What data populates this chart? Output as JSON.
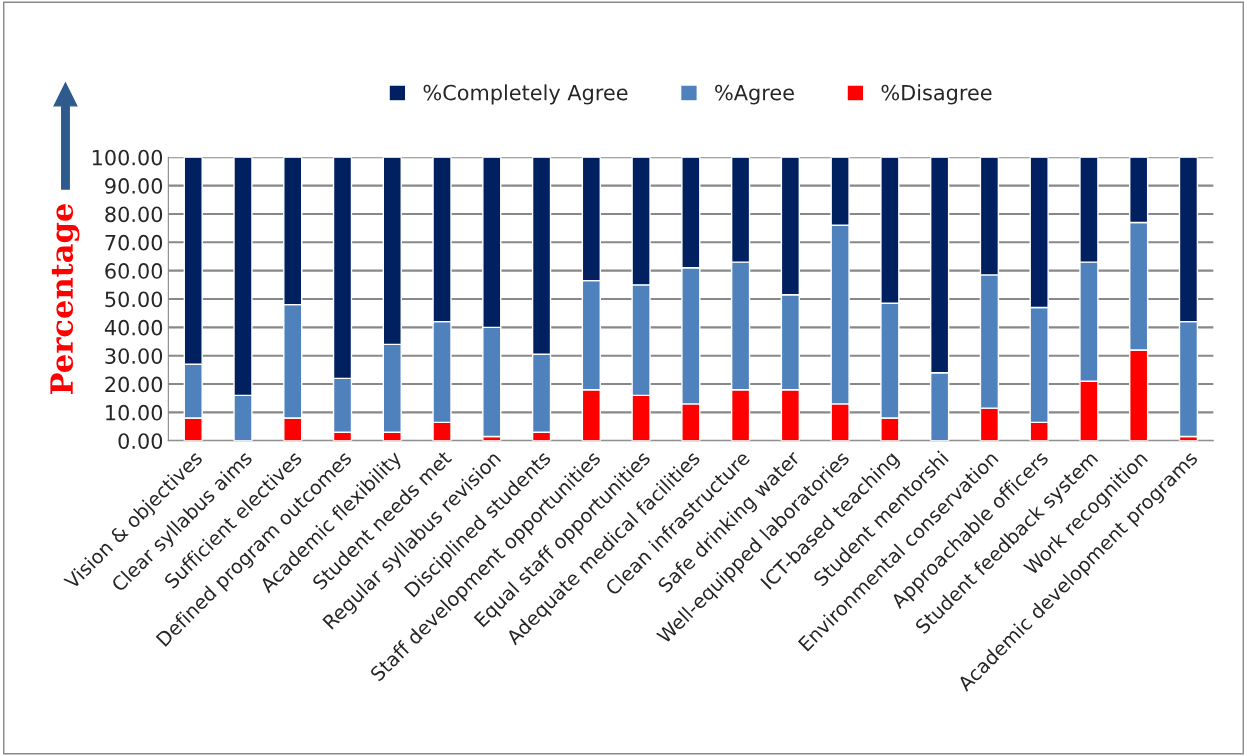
{
  "chart_data": {
    "type": "bar",
    "stacked": true,
    "ylabel": "Percentage",
    "categories": [
      "Vision & objectives",
      "Clear syllabus aims",
      "Sufficient electives",
      "Defined program outcomes",
      "Academic flexibility",
      "Student needs met",
      "Regular syllabus revision",
      "Disciplined students",
      "Staff development opportunities",
      "Equal staff opportunities",
      "Adequate medical facilities",
      "Clean infrastructure",
      "Safe drinking water",
      "Well-equipped laboratories",
      "ICT-based teaching",
      "Student mentorshi",
      "Environmental conservation",
      "Approachable officers",
      "Student feedback system",
      "Work recognition",
      "Academic development programs"
    ],
    "series": [
      {
        "name": "%Disagree",
        "color": "#ff0000",
        "values": [
          8,
          0,
          8,
          3,
          3,
          6.5,
          1.5,
          3,
          18,
          16,
          13,
          18,
          18,
          13,
          8,
          0,
          11.5,
          6.5,
          21,
          32,
          1.5
        ]
      },
      {
        "name": "%Agree",
        "color": "#4f81bd",
        "values": [
          19,
          16,
          40,
          19,
          31,
          35.5,
          38.5,
          27.5,
          38.5,
          39,
          48,
          45,
          33.5,
          63,
          40.5,
          24,
          47,
          40.5,
          42,
          45,
          40.5
        ]
      },
      {
        "name": "%Completely Agree",
        "color": "#002060",
        "values": [
          73,
          84,
          52,
          78,
          66,
          58,
          60,
          69.5,
          43.5,
          45,
          39,
          37,
          48.5,
          24,
          51.5,
          76,
          41.5,
          53,
          37,
          23,
          58
        ]
      }
    ],
    "ylim": [
      0,
      100
    ],
    "yticks": [
      {
        "value": 0,
        "label": "0.00"
      },
      {
        "value": 10,
        "label": "10.00"
      },
      {
        "value": 20,
        "label": "20.00"
      },
      {
        "value": 30,
        "label": "30.00"
      },
      {
        "value": 40,
        "label": "40.00"
      },
      {
        "value": 50,
        "label": "50.00"
      },
      {
        "value": 60,
        "label": "60.00"
      },
      {
        "value": 70,
        "label": "70.00"
      },
      {
        "value": 80,
        "label": "80.00"
      },
      {
        "value": 90,
        "label": "90.00"
      },
      {
        "value": 100,
        "label": "100.00"
      }
    ],
    "grid": "y",
    "legend": "top"
  }
}
